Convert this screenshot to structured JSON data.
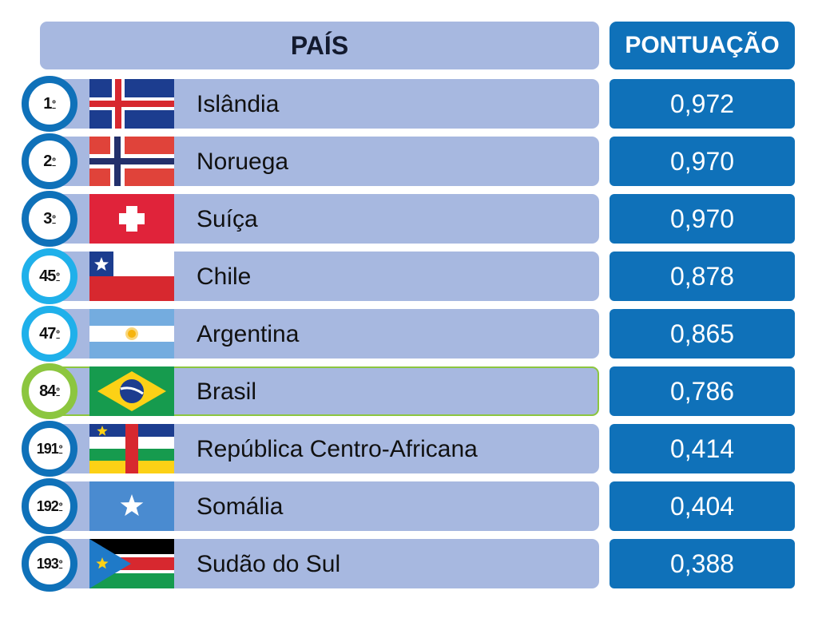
{
  "header": {
    "country": "PAÍS",
    "score": "PONTUAÇÃO"
  },
  "colors": {
    "bar": "#a7b8e0",
    "score_bg": "#0f71b9",
    "rank_top": "#0f71b9",
    "rank_mid": "#1fb0ea",
    "rank_brasil": "#8cc63f"
  },
  "rows": [
    {
      "rank": "1",
      "ord": "º",
      "country": "Islândia",
      "score": "0,972",
      "flag_icon": "iceland-flag-icon"
    },
    {
      "rank": "2",
      "ord": "º",
      "country": "Noruega",
      "score": "0,970",
      "flag_icon": "norway-flag-icon"
    },
    {
      "rank": "3",
      "ord": "º",
      "country": "Suíça",
      "score": "0,970",
      "flag_icon": "switzerland-flag-icon"
    },
    {
      "rank": "45",
      "ord": "º",
      "country": "Chile",
      "score": "0,878",
      "flag_icon": "chile-flag-icon"
    },
    {
      "rank": "47",
      "ord": "º",
      "country": "Argentina",
      "score": "0,865",
      "flag_icon": "argentina-flag-icon"
    },
    {
      "rank": "84",
      "ord": "º",
      "country": "Brasil",
      "score": "0,786",
      "flag_icon": "brazil-flag-icon"
    },
    {
      "rank": "191",
      "ord": "º",
      "country": "República Centro-Africana",
      "score": "0,414",
      "flag_icon": "central-african-republic-flag-icon"
    },
    {
      "rank": "192",
      "ord": "º",
      "country": "Somália",
      "score": "0,404",
      "flag_icon": "somalia-flag-icon"
    },
    {
      "rank": "193",
      "ord": "º",
      "country": "Sudão do Sul",
      "score": "0,388",
      "flag_icon": "south-sudan-flag-icon"
    }
  ],
  "chart_data": {
    "type": "table",
    "columns": [
      "PAÍS",
      "PONTUAÇÃO"
    ],
    "rows": [
      {
        "rank": "1º",
        "country": "Islândia",
        "score": 0.972
      },
      {
        "rank": "2º",
        "country": "Noruega",
        "score": 0.97
      },
      {
        "rank": "3º",
        "country": "Suíça",
        "score": 0.97
      },
      {
        "rank": "45º",
        "country": "Chile",
        "score": 0.878
      },
      {
        "rank": "47º",
        "country": "Argentina",
        "score": 0.865
      },
      {
        "rank": "84º",
        "country": "Brasil",
        "score": 0.786
      },
      {
        "rank": "191º",
        "country": "República Centro-Africana",
        "score": 0.414
      },
      {
        "rank": "192º",
        "country": "Somália",
        "score": 0.404
      },
      {
        "rank": "193º",
        "country": "Sudão do Sul",
        "score": 0.388
      }
    ]
  }
}
